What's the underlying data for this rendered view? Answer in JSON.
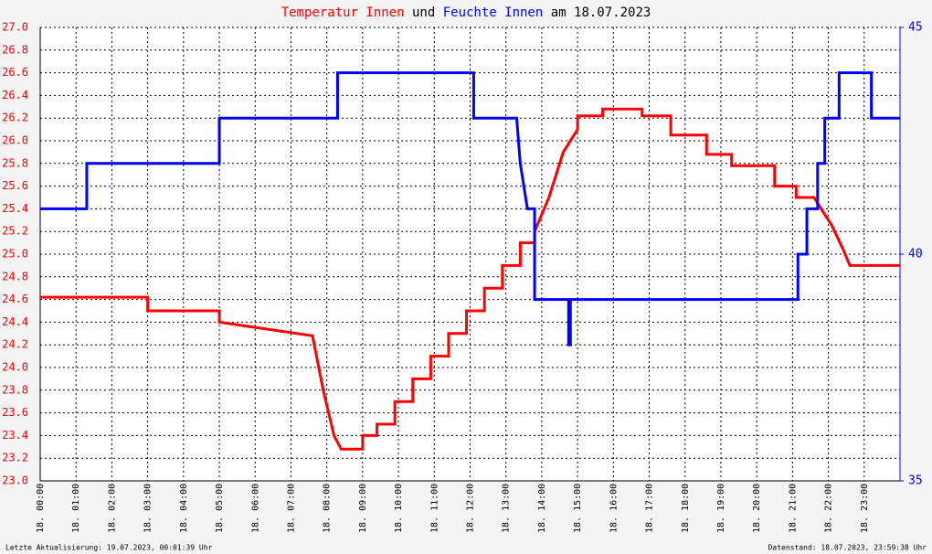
{
  "chart_data": {
    "type": "line",
    "title_joiner": "und",
    "title_suffix": "am 18.07.2023",
    "footer_left": "Letzte Aktualisierung: 19.07.2023, 00:01:39 Uhr",
    "footer_right": "Datenstand: 18.07.2023, 23:59:38 Uhr",
    "xlim": [
      0,
      24
    ],
    "xticks": [
      {
        "value": 0,
        "label": "18. 00:00"
      },
      {
        "value": 1,
        "label": "18. 01:00"
      },
      {
        "value": 2,
        "label": "18. 02:00"
      },
      {
        "value": 3,
        "label": "18. 03:00"
      },
      {
        "value": 4,
        "label": "18. 04:00"
      },
      {
        "value": 5,
        "label": "18. 05:00"
      },
      {
        "value": 6,
        "label": "18. 06:00"
      },
      {
        "value": 7,
        "label": "18. 07:00"
      },
      {
        "value": 8,
        "label": "18. 08:00"
      },
      {
        "value": 9,
        "label": "18. 09:00"
      },
      {
        "value": 10,
        "label": "18. 10:00"
      },
      {
        "value": 11,
        "label": "18. 11:00"
      },
      {
        "value": 12,
        "label": "18. 12:00"
      },
      {
        "value": 13,
        "label": "18. 13:00"
      },
      {
        "value": 14,
        "label": "18. 14:00"
      },
      {
        "value": 15,
        "label": "18. 15:00"
      },
      {
        "value": 16,
        "label": "18. 16:00"
      },
      {
        "value": 17,
        "label": "18. 17:00"
      },
      {
        "value": 18,
        "label": "18. 18:00"
      },
      {
        "value": 19,
        "label": "18. 19:00"
      },
      {
        "value": 20,
        "label": "18. 20:00"
      },
      {
        "value": 21,
        "label": "18. 21:00"
      },
      {
        "value": 22,
        "label": "18. 22:00"
      },
      {
        "value": 23,
        "label": "18. 23:00"
      }
    ],
    "ylim": [
      23,
      27
    ],
    "yticks": [
      {
        "value": 23,
        "label": "23.0"
      },
      23.2,
      23.4,
      23.6,
      23.8,
      {
        "value": 24,
        "label": "24.0"
      },
      24.2,
      24.4,
      24.6,
      24.8,
      {
        "value": 25,
        "label": "25.0"
      },
      25.2,
      25.4,
      25.6,
      25.8,
      {
        "value": 26,
        "label": "26.0"
      },
      26.2,
      26.4,
      26.6,
      26.8,
      {
        "value": 27,
        "label": "27.0"
      }
    ],
    "y2lim": [
      35,
      45
    ],
    "y2ticks": [
      35,
      40,
      45
    ],
    "grid": true,
    "series": [
      {
        "name": "Temperatur Innen",
        "color": "#ff0000",
        "x": [
          0,
          3.0,
          3.0,
          5.0,
          5.0,
          7.6,
          7.9,
          8.2,
          8.4,
          9.0,
          9.0,
          9.4,
          9.4,
          9.9,
          9.9,
          10.4,
          10.4,
          10.9,
          10.9,
          11.4,
          11.4,
          11.9,
          11.9,
          12.4,
          12.4,
          12.9,
          12.9,
          13.4,
          13.4,
          13.8,
          13.8,
          14.2,
          14.6,
          15.0,
          15.0,
          15.7,
          15.7,
          16.8,
          16.8,
          17.6,
          17.6,
          18.6,
          18.6,
          19.3,
          19.3,
          20.5,
          20.5,
          21.1,
          21.1,
          21.6,
          21.8,
          22.1,
          22.4,
          22.6,
          24
        ],
        "values": [
          24.62,
          24.62,
          24.5,
          24.5,
          24.4,
          24.28,
          23.8,
          23.4,
          23.28,
          23.28,
          23.4,
          23.4,
          23.5,
          23.5,
          23.7,
          23.7,
          23.9,
          23.9,
          24.1,
          24.1,
          24.3,
          24.3,
          24.5,
          24.5,
          24.7,
          24.7,
          24.9,
          24.9,
          25.1,
          25.1,
          25.2,
          25.5,
          25.9,
          26.1,
          26.22,
          26.22,
          26.28,
          26.28,
          26.22,
          26.22,
          26.05,
          26.05,
          25.88,
          25.88,
          25.78,
          25.78,
          25.6,
          25.6,
          25.5,
          25.5,
          25.4,
          25.25,
          25.05,
          24.9,
          24.9
        ]
      },
      {
        "name": "Feuchte Innen",
        "color": "#0000ff",
        "axis": "y2",
        "x": [
          0,
          1.3,
          1.3,
          5.0,
          5.0,
          8.3,
          8.3,
          12.1,
          12.1,
          13.3,
          13.4,
          13.6,
          13.8,
          13.8,
          14.75,
          14.75,
          14.8,
          14.8,
          21.15,
          21.15,
          21.4,
          21.4,
          21.7,
          21.7,
          21.9,
          21.9,
          22.3,
          22.3,
          23.2,
          23.2,
          24
        ],
        "values": [
          41,
          41,
          42,
          42,
          43,
          43,
          44,
          44,
          43,
          43,
          42,
          41,
          41,
          39,
          39,
          38,
          38,
          39,
          39,
          40,
          40,
          41,
          41,
          42,
          42,
          43,
          43,
          44,
          44,
          43,
          43
        ]
      }
    ]
  }
}
